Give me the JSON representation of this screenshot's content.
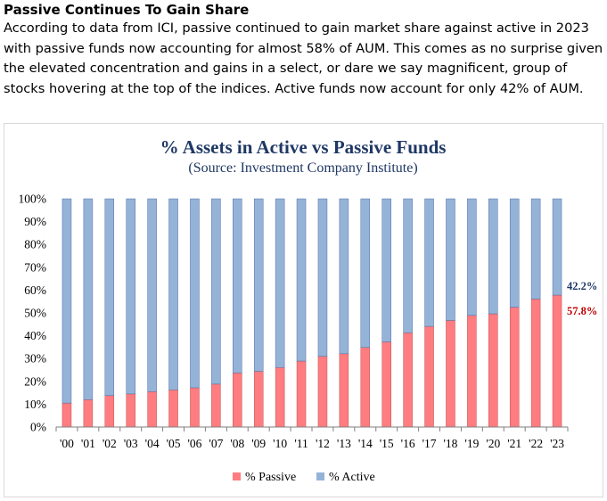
{
  "article": {
    "heading": "Passive Continues To Gain Share",
    "body": "According to data from ICI, passive continued to gain market share against active in 2023 with passive funds now accounting for almost 58% of AUM. This comes as no surprise given the elevated concentration and gains in a select, or dare we say magnificent, group of stocks hovering at the top of the indices. Active funds now account for only 42% of AUM."
  },
  "colors": {
    "passive": "#ff7c80",
    "active": "#95b3d7",
    "title": "#1f3864",
    "passive_label": "#c00000",
    "active_label": "#1f3864"
  },
  "chart_data": {
    "type": "bar",
    "stacked": true,
    "title": "% Assets in Active vs Passive Funds",
    "subtitle": "(Source: Investment Company Institute)",
    "xlabel": "",
    "ylabel": "",
    "ylim": [
      0,
      100
    ],
    "yticks": [
      "0%",
      "10%",
      "20%",
      "30%",
      "40%",
      "50%",
      "60%",
      "70%",
      "80%",
      "90%",
      "100%"
    ],
    "categories": [
      "'00",
      "'01",
      "'02",
      "'03",
      "'04",
      "'05",
      "'06",
      "'07",
      "'08",
      "'09",
      "'10",
      "'11",
      "'12",
      "'13",
      "'14",
      "'15",
      "'16",
      "'17",
      "'18",
      "'19",
      "'20",
      "'21",
      "'22",
      "'23"
    ],
    "series": [
      {
        "name": "% Passive",
        "values": [
          10.5,
          12,
          13.8,
          14.5,
          15.5,
          16.3,
          17.2,
          18.8,
          23.7,
          24.4,
          26.1,
          28.9,
          31.0,
          32.1,
          34.9,
          37.3,
          41.3,
          44.1,
          46.7,
          48.9,
          49.6,
          52.5,
          56.1,
          57.8
        ]
      },
      {
        "name": "% Active",
        "values": [
          89.5,
          88,
          86.2,
          85.5,
          84.5,
          83.7,
          82.8,
          81.2,
          76.3,
          75.6,
          73.9,
          71.1,
          69.0,
          67.9,
          65.1,
          62.7,
          58.7,
          55.9,
          53.3,
          51.1,
          50.4,
          47.5,
          43.9,
          42.2
        ]
      }
    ],
    "annotations": {
      "active_last": "42.2%",
      "passive_last": "57.8%"
    },
    "legend": [
      "% Passive",
      "% Active"
    ],
    "legend_position": "bottom",
    "grid": false
  }
}
